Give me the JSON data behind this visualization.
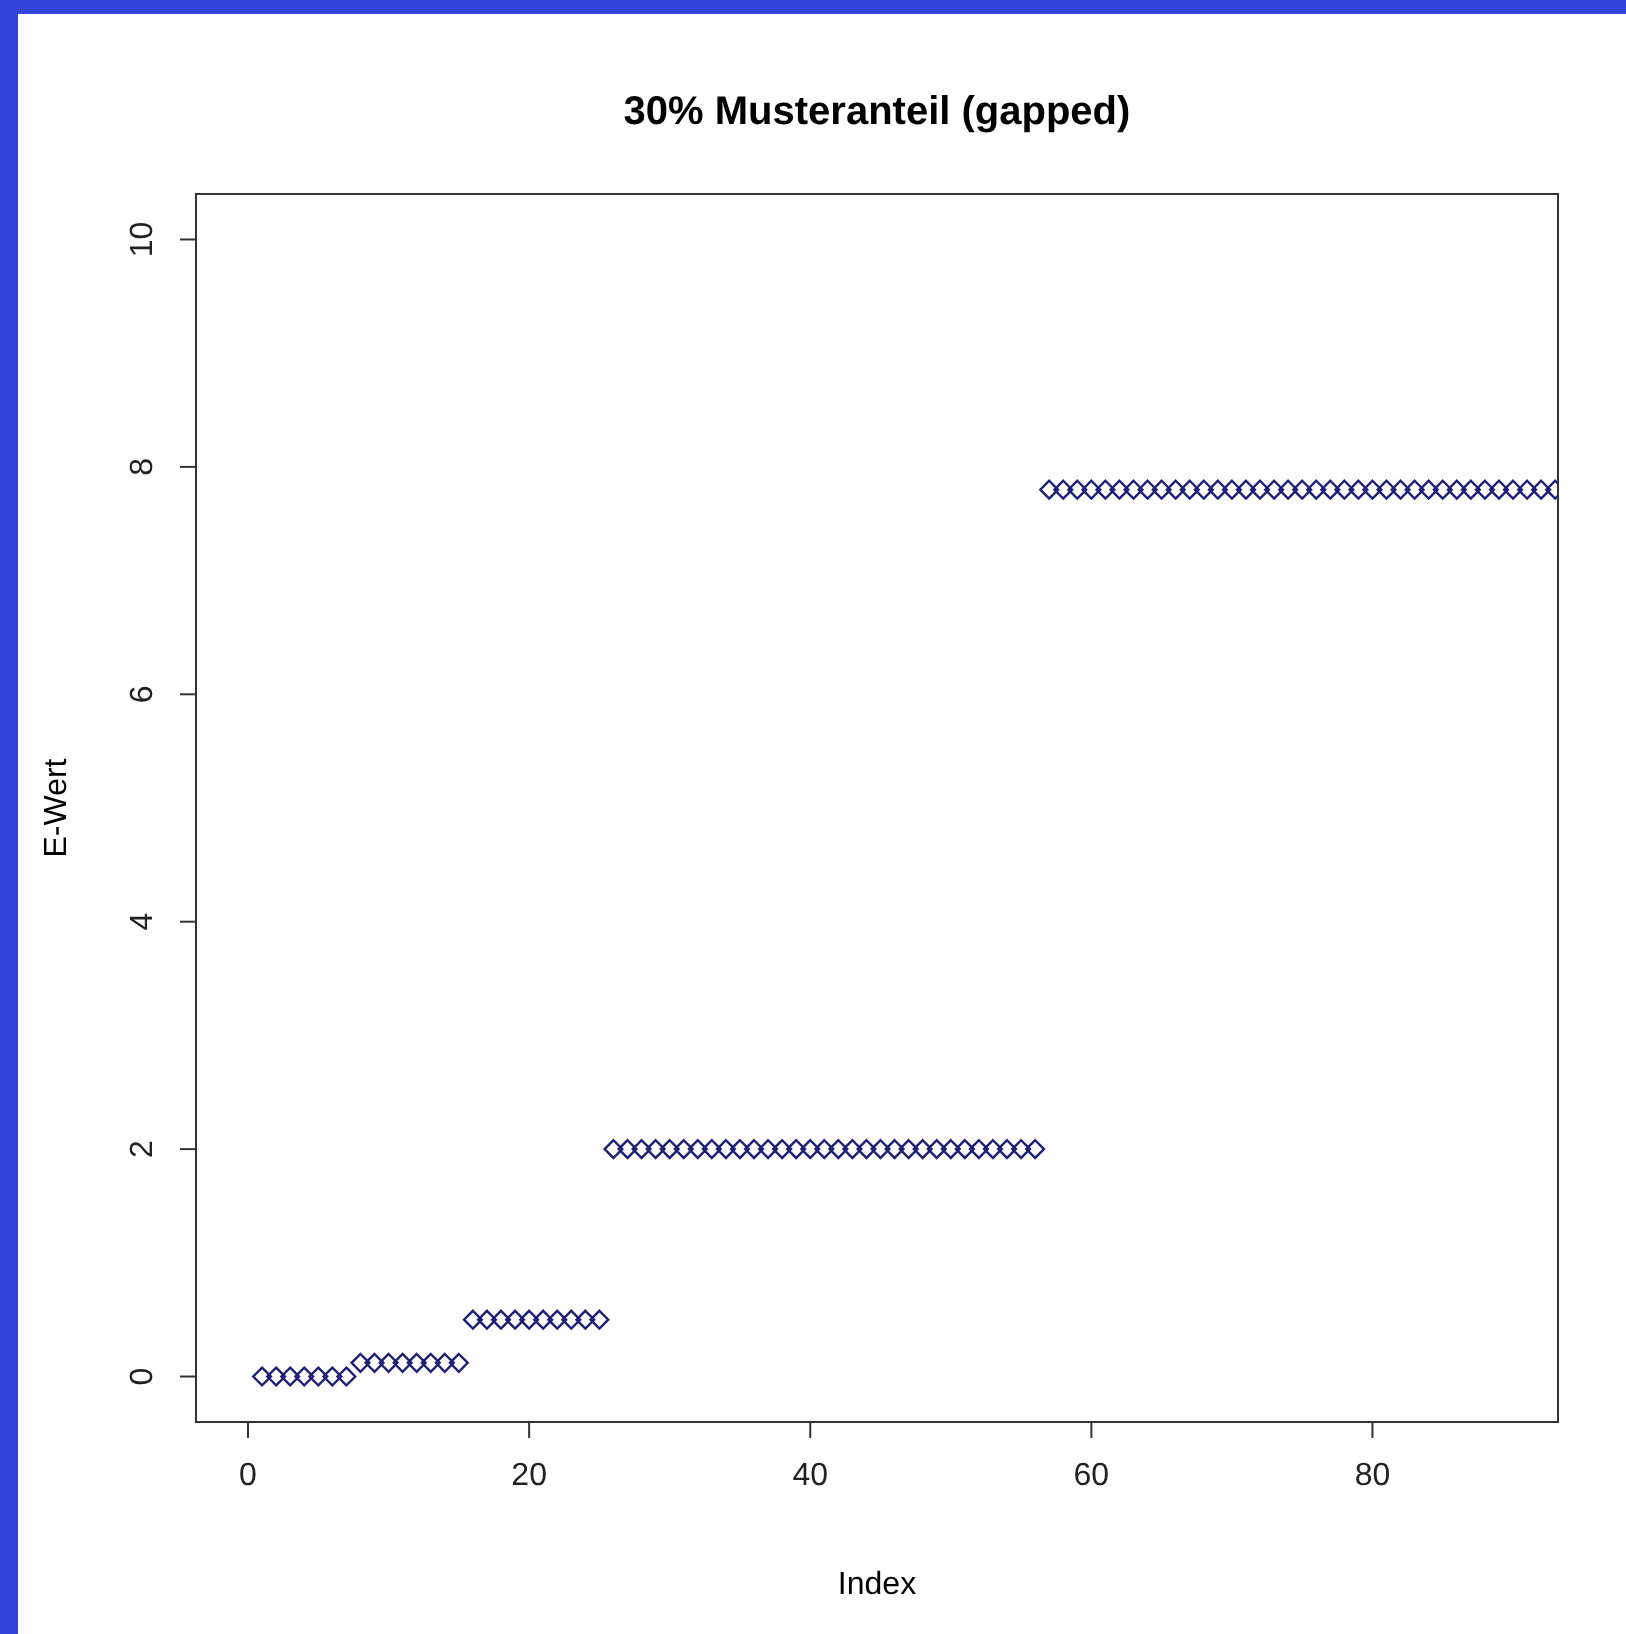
{
  "chart_data": {
    "type": "scatter",
    "title": "30% Musteranteil (gapped)",
    "xlabel": "Index",
    "ylabel": "E-Wert",
    "x": [
      1,
      2,
      3,
      4,
      5,
      6,
      7,
      8,
      9,
      10,
      11,
      12,
      13,
      14,
      15,
      16,
      17,
      18,
      19,
      20,
      21,
      22,
      23,
      24,
      25,
      26,
      27,
      28,
      29,
      30,
      31,
      32,
      33,
      34,
      35,
      36,
      37,
      38,
      39,
      40,
      41,
      42,
      43,
      44,
      45,
      46,
      47,
      48,
      49,
      50,
      51,
      52,
      53,
      54,
      55,
      56,
      57,
      58,
      59,
      60,
      61,
      62,
      63,
      64,
      65,
      66,
      67,
      68,
      69,
      70,
      71,
      72,
      73,
      74,
      75,
      76,
      77,
      78,
      79,
      80,
      81,
      82,
      83,
      84,
      85,
      86,
      87,
      88,
      89,
      90,
      91,
      92,
      93
    ],
    "series": [
      {
        "color": "#1f1f78",
        "values": [
          0,
          0,
          0,
          0,
          0,
          0,
          0,
          0.12,
          0.12,
          0.12,
          0.12,
          0.12,
          0.12,
          0.12,
          0.12,
          0.5,
          0.5,
          0.5,
          0.5,
          0.5,
          0.5,
          0.5,
          0.5,
          0.5,
          0.5,
          2,
          2,
          2,
          2,
          2,
          2,
          2,
          2,
          2,
          2,
          2,
          2,
          2,
          2,
          2,
          2,
          2,
          2,
          2,
          2,
          2,
          2,
          2,
          2,
          2,
          2,
          2,
          2,
          2,
          2,
          2,
          7.8,
          7.8,
          7.8,
          7.8,
          7.8,
          7.8,
          7.8,
          7.8,
          7.8,
          7.8,
          7.8,
          7.8,
          7.8,
          7.8,
          7.8,
          7.8,
          7.8,
          7.8,
          7.8,
          7.8,
          7.8,
          7.8,
          7.8,
          7.8,
          7.8,
          7.8,
          7.8,
          7.8,
          7.8,
          7.8,
          7.8,
          7.8,
          7.8,
          7.8,
          7.8,
          7.8,
          7.8
        ]
      }
    ],
    "xlim": [
      -3.7,
      93.2
    ],
    "ylim": [
      -0.4,
      10.4
    ],
    "xticks": [
      0,
      20,
      40,
      60,
      80
    ],
    "yticks": [
      0,
      2,
      4,
      6,
      8,
      10
    ],
    "marker": "diamond"
  }
}
